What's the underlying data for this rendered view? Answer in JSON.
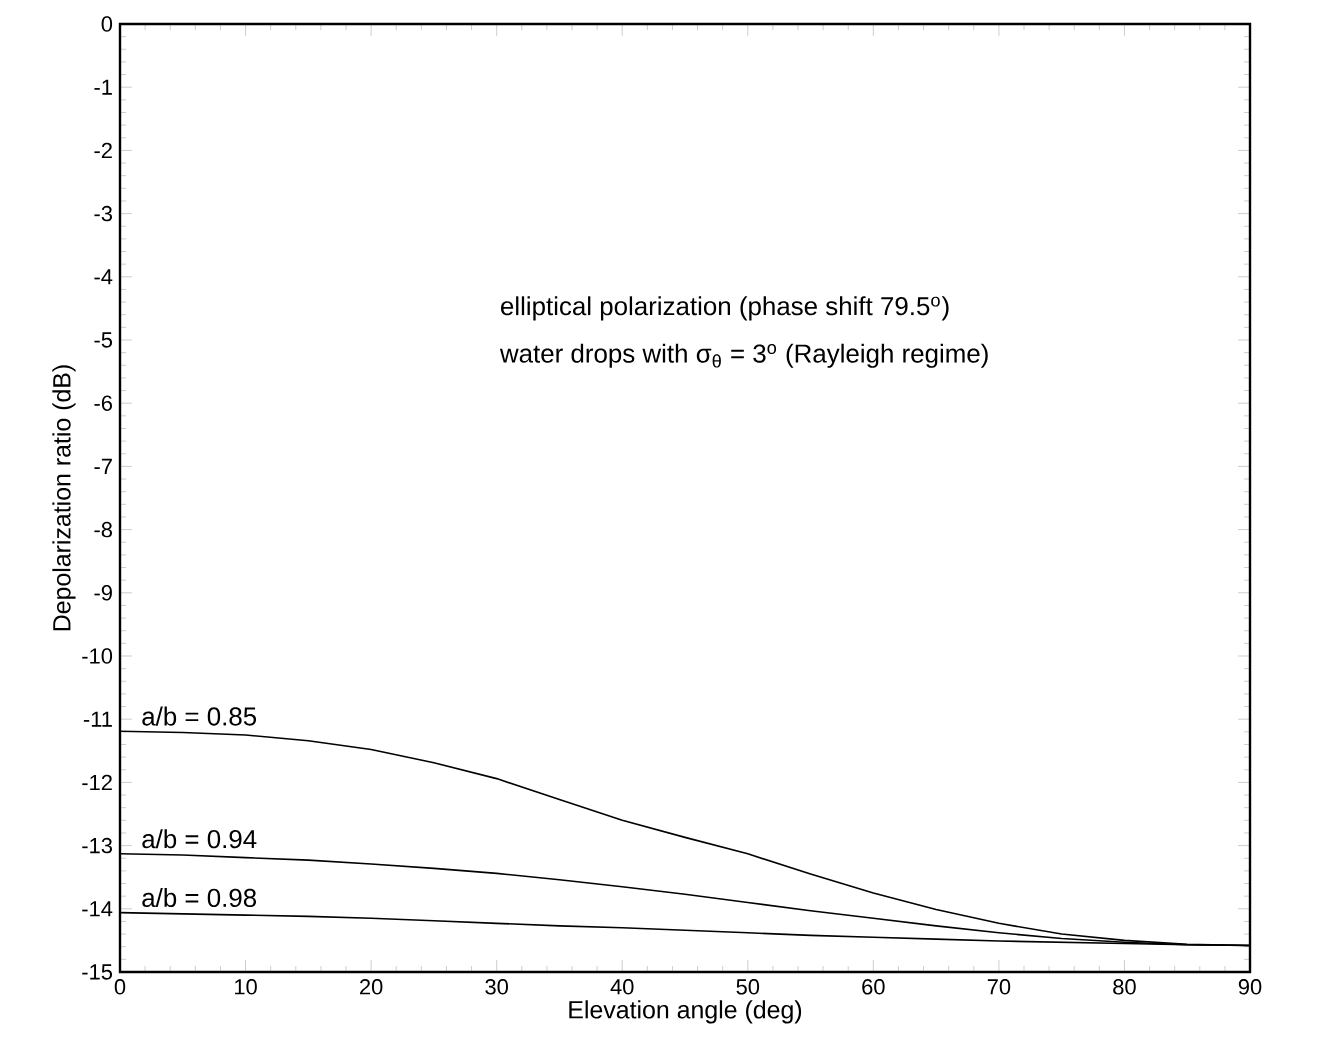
{
  "chart_data": {
    "type": "line",
    "xlabel": "Elevation angle (deg)",
    "ylabel": "Depolarization ratio (dB)",
    "x": [
      0,
      5,
      10,
      15,
      20,
      25,
      30,
      35,
      40,
      45,
      50,
      55,
      60,
      65,
      70,
      75,
      80,
      85,
      90
    ],
    "series": [
      {
        "name": "a/b = 0.85",
        "color": "#000000",
        "values": [
          -11.19,
          -11.21,
          -11.25,
          -11.34,
          -11.48,
          -11.69,
          -11.94,
          -12.27,
          -12.6,
          -12.87,
          -13.13,
          -13.45,
          -13.75,
          -14.01,
          -14.23,
          -14.4,
          -14.5,
          -14.56,
          -14.58
        ]
      },
      {
        "name": "a/b = 0.94",
        "color": "#000000",
        "values": [
          -13.13,
          -13.15,
          -13.19,
          -13.23,
          -13.29,
          -13.36,
          -13.44,
          -13.54,
          -13.65,
          -13.77,
          -13.9,
          -14.03,
          -14.15,
          -14.27,
          -14.38,
          -14.47,
          -14.53,
          -14.57,
          -14.58
        ]
      },
      {
        "name": "a/b = 0.98",
        "color": "#000000",
        "values": [
          -14.06,
          -14.08,
          -14.1,
          -14.12,
          -14.15,
          -14.19,
          -14.23,
          -14.27,
          -14.3,
          -14.34,
          -14.38,
          -14.42,
          -14.45,
          -14.48,
          -14.51,
          -14.53,
          -14.55,
          -14.57,
          -14.58
        ]
      }
    ],
    "annotations": [
      "elliptical polarization (phase shift 79.5$^{o}$)",
      "water drops with σ$_{θ}$ = 3$^{o}$ (Rayleigh regime)"
    ],
    "xlim": [
      0,
      90
    ],
    "ylim": [
      -15,
      0
    ],
    "xticks": [
      0,
      10,
      20,
      30,
      40,
      50,
      60,
      70,
      80,
      90
    ],
    "yticks": [
      -15,
      -14,
      -13,
      -12,
      -11,
      -10,
      -9,
      -8,
      -7,
      -6,
      -5,
      -4,
      -3,
      -2,
      -1,
      0
    ],
    "grid": false,
    "marker": "none",
    "line_style": "solid"
  }
}
